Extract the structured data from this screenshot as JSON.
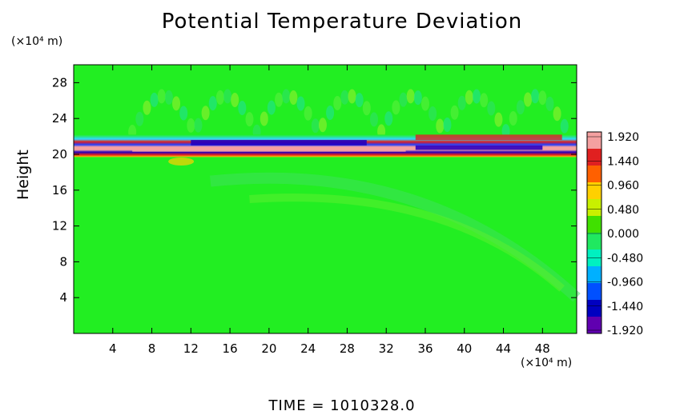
{
  "chart_data": {
    "type": "heatmap",
    "title": "Potential Temperature Deviation",
    "ylabel": "Height",
    "x_unit": "(×10⁴ m)",
    "y_unit": "(×10⁴ m)",
    "footer": "TIME  =  1010328.0",
    "xlim": [
      0,
      51.5
    ],
    "ylim": [
      0,
      30
    ],
    "x_ticks": [
      "4",
      "8",
      "12",
      "16",
      "20",
      "24",
      "28",
      "32",
      "36",
      "40",
      "44",
      "48"
    ],
    "y_ticks": [
      "4",
      "8",
      "12",
      "16",
      "20",
      "24",
      "28"
    ],
    "colorbar": {
      "labels": [
        "1.920",
        "1.440",
        "0.960",
        "0.480",
        "0.000",
        "-0.480",
        "-0.960",
        "-1.440",
        "-1.920"
      ],
      "colors": [
        "#f4a0a0",
        "#e02020",
        "#ff6000",
        "#ffd000",
        "#c8f000",
        "#40e000",
        "#20e860",
        "#00f0c0",
        "#00b0ff",
        "#0050ff",
        "#0000c0",
        "#6000b0"
      ],
      "background": "#22ee22"
    }
  }
}
